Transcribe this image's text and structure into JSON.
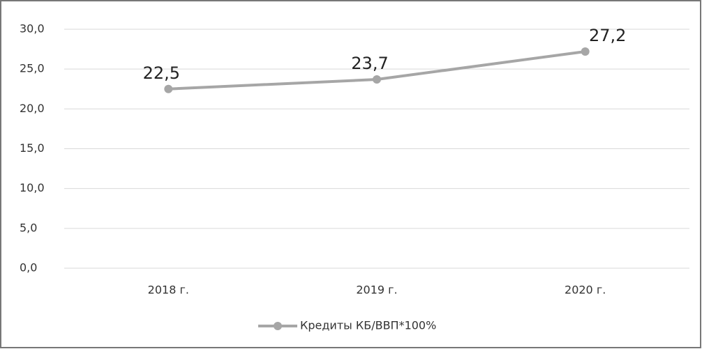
{
  "chart_data": {
    "type": "line",
    "categories": [
      "2018 г.",
      "2019 г.",
      "2020 г."
    ],
    "series": [
      {
        "name": "Кредиты КБ/ВВП*100%",
        "color": "#a6a6a6",
        "values": [
          22.5,
          23.7,
          27.2
        ],
        "value_labels": [
          "22,5",
          "23,7",
          "27,2"
        ]
      }
    ],
    "ylim": [
      0,
      30
    ],
    "yticks": [
      {
        "value": 0,
        "label": "0,0"
      },
      {
        "value": 5,
        "label": "5,0"
      },
      {
        "value": 10,
        "label": "10,0"
      },
      {
        "value": 15,
        "label": "15,0"
      },
      {
        "value": 20,
        "label": "20,0"
      },
      {
        "value": 25,
        "label": "25,0"
      },
      {
        "value": 30,
        "label": "30,0"
      }
    ],
    "grid": true,
    "legend": "bottom"
  }
}
